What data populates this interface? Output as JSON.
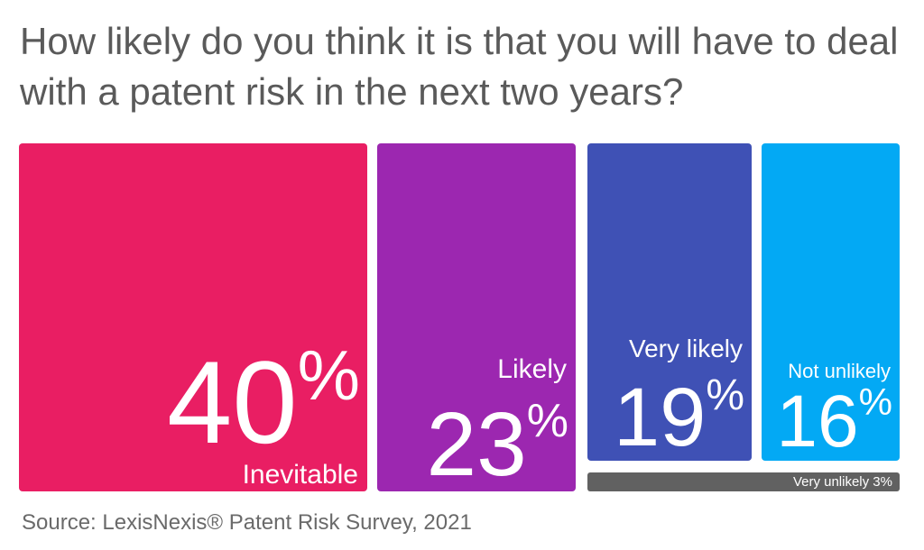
{
  "title": "How likely do you think it is that you will have to deal with a patent risk in the next two years?",
  "source": "Source: LexisNexis® Patent Risk Survey, 2021",
  "colors": {
    "Inevitable": "#e91e63",
    "Likely": "#9c27b0",
    "Very likely": "#3f51b5",
    "Not unlikely": "#03a9f4",
    "Very unlikely": "#616161"
  },
  "tiles": [
    {
      "label": "Inevitable",
      "value": "40",
      "unit": "%"
    },
    {
      "label": "Likely",
      "value": "23",
      "unit": "%"
    },
    {
      "label": "Very likely",
      "value": "19",
      "unit": "%"
    },
    {
      "label": "Not unlikely",
      "value": "16",
      "unit": "%"
    },
    {
      "label": "Very unlikely 3%"
    }
  ],
  "chart_data": {
    "type": "treemap",
    "title": "How likely do you think it is that you will have to deal with a patent risk in the next two years?",
    "categories": [
      "Inevitable",
      "Likely",
      "Very likely",
      "Not unlikely",
      "Very unlikely"
    ],
    "values": [
      40,
      23,
      19,
      16,
      3
    ],
    "unit": "%"
  }
}
